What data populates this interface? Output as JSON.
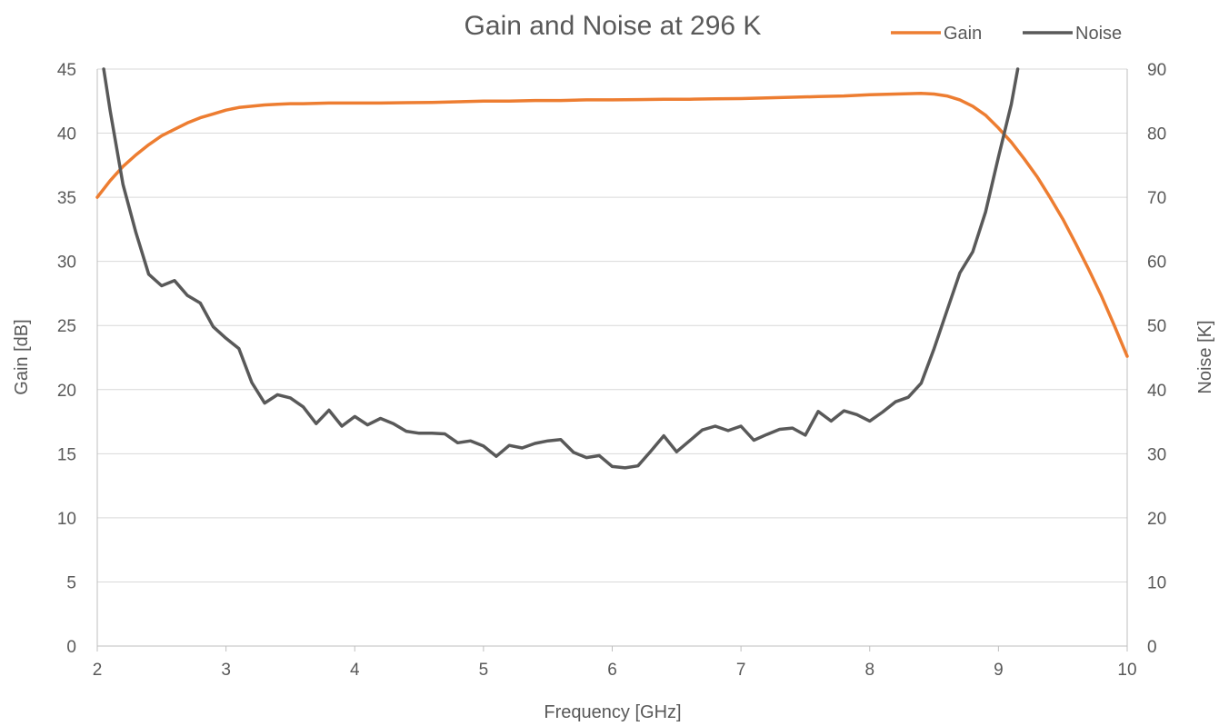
{
  "chart_data": {
    "type": "line",
    "title": "Gain and Noise at 296 K",
    "xlabel": "Frequency [GHz]",
    "ylabel_left": "Gain [dB]",
    "ylabel_right": "Noise [K]",
    "xlim": [
      2,
      10
    ],
    "ylim_left": [
      0,
      45
    ],
    "ylim_right": [
      0,
      90
    ],
    "x_ticks": [
      2,
      3,
      4,
      5,
      6,
      7,
      8,
      9,
      10
    ],
    "y_left_ticks": [
      0,
      5,
      10,
      15,
      20,
      25,
      30,
      35,
      40,
      45
    ],
    "y_right_ticks": [
      0,
      10,
      20,
      30,
      40,
      50,
      60,
      70,
      80,
      90
    ],
    "grid": "horizontal",
    "legend": "top-right",
    "series": [
      {
        "name": "Gain",
        "axis": "left",
        "color": "#ed7d31",
        "x": [
          2.0,
          2.1,
          2.2,
          2.3,
          2.4,
          2.5,
          2.6,
          2.7,
          2.8,
          2.9,
          3.0,
          3.1,
          3.2,
          3.3,
          3.4,
          3.5,
          3.6,
          3.8,
          4.0,
          4.2,
          4.4,
          4.6,
          4.8,
          5.0,
          5.2,
          5.4,
          5.6,
          5.8,
          6.0,
          6.2,
          6.4,
          6.6,
          6.8,
          7.0,
          7.2,
          7.4,
          7.6,
          7.8,
          8.0,
          8.2,
          8.4,
          8.5,
          8.6,
          8.7,
          8.8,
          8.9,
          9.0,
          9.1,
          9.2,
          9.3,
          9.4,
          9.5,
          9.6,
          9.7,
          9.8,
          9.9,
          10.0
        ],
        "values": [
          35.0,
          36.3,
          37.4,
          38.3,
          39.1,
          39.8,
          40.3,
          40.8,
          41.2,
          41.5,
          41.8,
          42.0,
          42.1,
          42.2,
          42.25,
          42.3,
          42.3,
          42.35,
          42.35,
          42.35,
          42.38,
          42.4,
          42.45,
          42.5,
          42.5,
          42.55,
          42.55,
          42.6,
          42.6,
          42.62,
          42.65,
          42.65,
          42.68,
          42.7,
          42.75,
          42.8,
          42.85,
          42.9,
          43.0,
          43.05,
          43.1,
          43.05,
          42.9,
          42.6,
          42.1,
          41.4,
          40.4,
          39.3,
          38.0,
          36.6,
          35.0,
          33.3,
          31.4,
          29.4,
          27.3,
          25.0,
          22.6
        ]
      },
      {
        "name": "Noise",
        "axis": "right",
        "color": "#595959",
        "x": [
          2.05,
          2.1,
          2.2,
          2.3,
          2.4,
          2.5,
          2.6,
          2.7,
          2.8,
          2.9,
          3.0,
          3.1,
          3.2,
          3.3,
          3.4,
          3.5,
          3.6,
          3.7,
          3.8,
          3.9,
          4.0,
          4.1,
          4.2,
          4.3,
          4.4,
          4.5,
          4.6,
          4.7,
          4.8,
          4.9,
          5.0,
          5.1,
          5.2,
          5.3,
          5.4,
          5.5,
          5.6,
          5.7,
          5.8,
          5.9,
          6.0,
          6.1,
          6.2,
          6.3,
          6.4,
          6.5,
          6.6,
          6.7,
          6.8,
          6.9,
          7.0,
          7.1,
          7.2,
          7.3,
          7.4,
          7.5,
          7.6,
          7.7,
          7.8,
          7.9,
          8.0,
          8.1,
          8.2,
          8.3,
          8.4,
          8.5,
          8.6,
          8.7,
          8.8,
          8.9,
          9.0,
          9.1,
          9.15
        ],
        "values": [
          90.0,
          83.5,
          72.0,
          64.5,
          58.0,
          56.2,
          57.0,
          54.7,
          53.5,
          49.8,
          48.0,
          46.4,
          41.1,
          37.9,
          39.2,
          38.7,
          37.3,
          34.7,
          36.8,
          34.3,
          35.8,
          34.5,
          35.5,
          34.7,
          33.5,
          33.2,
          33.2,
          33.1,
          31.7,
          32.0,
          31.2,
          29.6,
          31.3,
          30.9,
          31.6,
          32.0,
          32.2,
          30.2,
          29.4,
          29.7,
          28.0,
          27.8,
          28.1,
          30.4,
          32.8,
          30.3,
          32.0,
          33.7,
          34.3,
          33.6,
          34.3,
          32.1,
          33.0,
          33.8,
          34.0,
          32.9,
          36.6,
          35.1,
          36.7,
          36.1,
          35.1,
          36.5,
          38.1,
          38.8,
          41.0,
          46.4,
          52.3,
          58.2,
          61.5,
          67.7,
          76.3,
          84.5,
          90.0
        ]
      }
    ]
  }
}
